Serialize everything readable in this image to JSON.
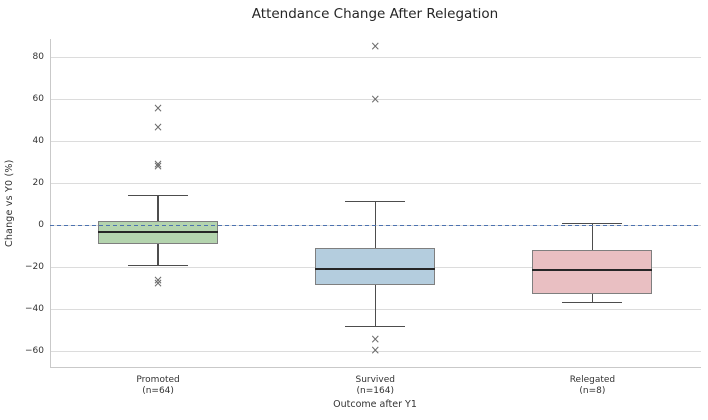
{
  "chart_data": {
    "type": "boxplot",
    "title": "Attendance Change After Relegation",
    "xlabel": "Outcome after Y1",
    "ylabel": "Change vs Y0 (%)",
    "ylim": [
      -67,
      89
    ],
    "yticks": [
      80,
      60,
      40,
      20,
      0,
      -20,
      -40,
      -60
    ],
    "grid": true,
    "legend": "none",
    "zero_line": {
      "value": 0,
      "style": "dashed",
      "color": "#4c72b0"
    },
    "categories": [
      {
        "label": "Promoted",
        "sublabel": "(n=64)",
        "fill_color": "#b4d4ae",
        "box": {
          "whislo": -19,
          "q1": -8.8,
          "med": -2.9,
          "q3": 2.1,
          "whishi": 14.5
        },
        "outliers": [
          56,
          47,
          29,
          28.5,
          -26,
          -27.5
        ]
      },
      {
        "label": "Survived",
        "sublabel": "(n=164)",
        "fill_color": "#b4cdde",
        "box": {
          "whislo": -48,
          "q1": -28,
          "med": -20.5,
          "q3": -10.5,
          "whishi": 11.5
        },
        "outliers": [
          85.5,
          60,
          -54,
          -59.5
        ]
      },
      {
        "label": "Relegated",
        "sublabel": "(n=8)",
        "fill_color": "#e9bfc2",
        "box": {
          "whislo": -36.5,
          "q1": -32.5,
          "med": -21,
          "q3": -11.5,
          "whishi": 1
        },
        "outliers": []
      }
    ],
    "colors": {
      "median": "#262626",
      "whisker": "#4d4d4d",
      "box_border": "#7f7f7f",
      "flier": "#6b6b6b",
      "grid": "#dcdcdc",
      "spine": "#c9c9c9",
      "text": "#333333"
    }
  }
}
